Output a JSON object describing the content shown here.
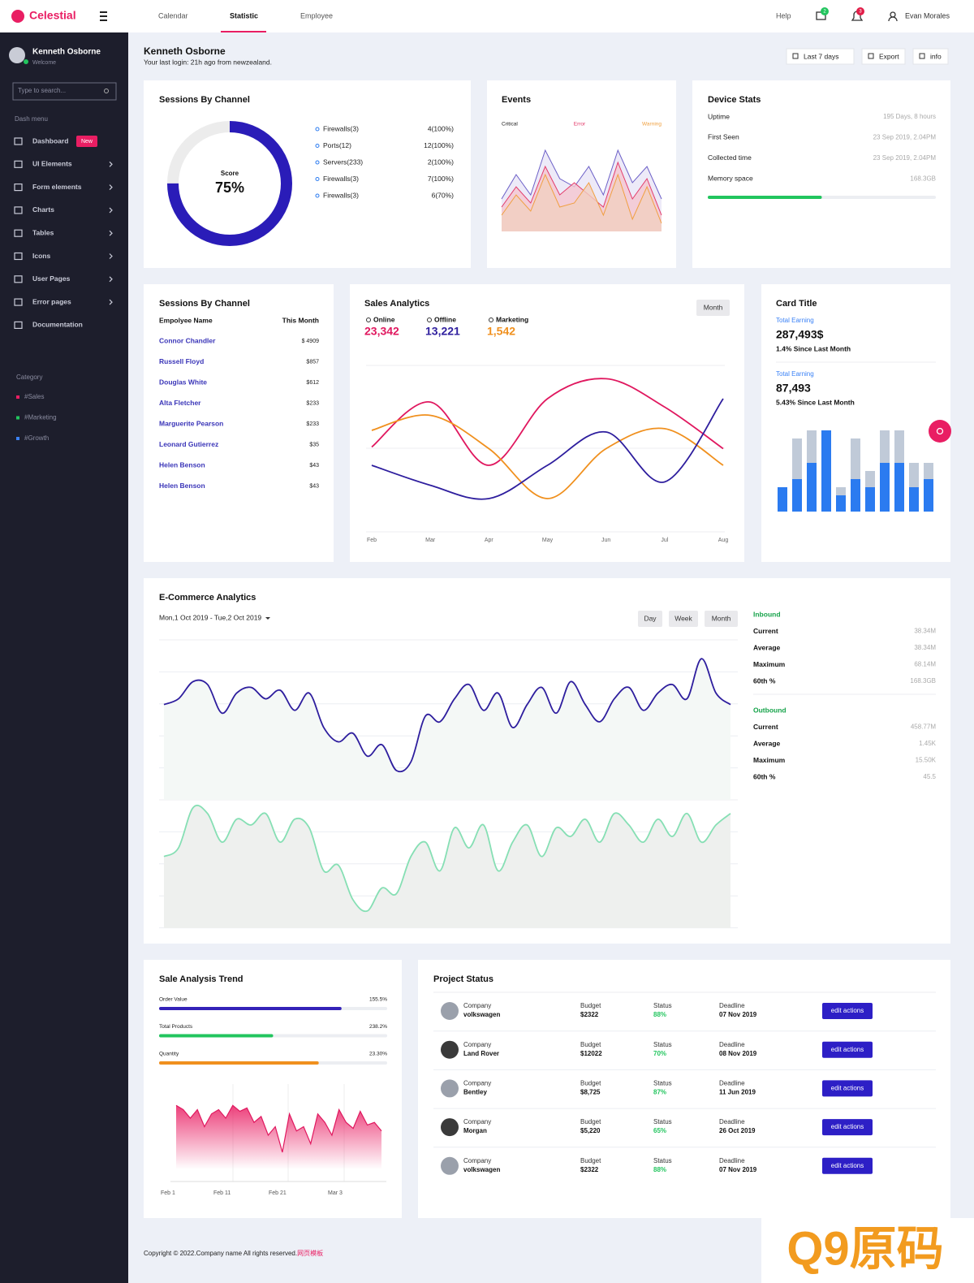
{
  "header": {
    "brand": "Celestial",
    "nav": [
      "Calendar",
      "Statistic",
      "Employee"
    ],
    "help": "Help",
    "messages_badge": "2",
    "alerts_badge": "3",
    "user": "Evan Morales"
  },
  "sidebar": {
    "user": "Kenneth Osborne",
    "status": "Welcome",
    "search_placeholder": "Type to search...",
    "menu_title": "Dash menu",
    "menu": [
      {
        "label": "Dashboard",
        "badge": "New"
      },
      {
        "label": "UI Elements"
      },
      {
        "label": "Form elements"
      },
      {
        "label": "Charts"
      },
      {
        "label": "Tables"
      },
      {
        "label": "Icons"
      },
      {
        "label": "User Pages"
      },
      {
        "label": "Error pages"
      },
      {
        "label": "Documentation"
      }
    ],
    "category_title": "Category",
    "categories": [
      {
        "label": "#Sales",
        "color": "#e91e63"
      },
      {
        "label": "#Marketing",
        "color": "#22c55e"
      },
      {
        "label": "#Growth",
        "color": "#3b82f6"
      }
    ]
  },
  "page": {
    "title": "Kenneth Osborne",
    "subtitle": "Your last login: 21h ago from newzealand.",
    "buttons": [
      "Last 7 days",
      "Export",
      "info"
    ]
  },
  "sessions": {
    "title": "Sessions By Channel",
    "score_label": "Score",
    "score": {
      "value": 75,
      "label": "75%"
    },
    "color": "#2a1cb8",
    "items": [
      {
        "name": "Firewalls(3)",
        "value": "4(100%)"
      },
      {
        "name": "Ports(12)",
        "value": "12(100%)"
      },
      {
        "name": "Servers(233)",
        "value": "2(100%)"
      },
      {
        "name": "Firewalls(3)",
        "value": "7(100%)"
      },
      {
        "name": "Firewalls(3)",
        "value": "6(70%)"
      }
    ]
  },
  "events": {
    "title": "Events",
    "ylim": [
      0,
      100
    ],
    "series": [
      {
        "name": "Critical",
        "color": "#6b5fc7",
        "fill": "#e8e5f6",
        "values": [
          40,
          70,
          45,
          100,
          65,
          55,
          80,
          45,
          100,
          60,
          80,
          40
        ]
      },
      {
        "name": "Error",
        "color": "#e33a6a",
        "fill": "#f4c6cf",
        "values": [
          30,
          55,
          35,
          80,
          45,
          60,
          45,
          30,
          85,
          40,
          65,
          20
        ]
      },
      {
        "name": "Warning",
        "color": "#f0a040",
        "fill": "#f1d0c0",
        "values": [
          20,
          45,
          25,
          70,
          30,
          35,
          60,
          20,
          70,
          15,
          55,
          10
        ]
      }
    ]
  },
  "device": {
    "title": "Device Stats",
    "rows": [
      {
        "label": "Uptime",
        "value": "195 Days, 8 hours"
      },
      {
        "label": "First Seen",
        "value": "23 Sep 2019, 2.04PM"
      },
      {
        "label": "Collected time",
        "value": "23 Sep 2019, 2.04PM"
      },
      {
        "label": "Memory space",
        "value": "168.3GB"
      }
    ],
    "memory_progress": 50,
    "color": "#22c55e"
  },
  "employees": {
    "title": "Sessions By Channel",
    "headers": [
      "Empolyee Name",
      "This Month"
    ],
    "rows": [
      [
        "Connor Chandler",
        "$ 4909"
      ],
      [
        "Russell Floyd",
        "$857"
      ],
      [
        "Douglas White",
        "$612"
      ],
      [
        "Alta Fletcher",
        "$233"
      ],
      [
        "Marguerite Pearson",
        "$233"
      ],
      [
        "Leonard Gutierrez",
        "$35"
      ],
      [
        "Helen Benson",
        "$43"
      ],
      [
        "Helen Benson",
        "$43"
      ]
    ]
  },
  "sales": {
    "title": "Sales Analytics",
    "button": "Month",
    "stats": [
      {
        "label": "Online",
        "value": "23,342",
        "color": "#e0185f"
      },
      {
        "label": "Offline",
        "value": "13,221",
        "color": "#2e1e9e"
      },
      {
        "label": "Marketing",
        "value": "1,542",
        "color": "#f0901e"
      }
    ],
    "categories": [
      "Feb",
      "Mar",
      "Apr",
      "May",
      "Jun",
      "Jul",
      "Aug"
    ],
    "ylim": [
      0,
      100
    ],
    "series": [
      {
        "color": "#e0185f",
        "values": [
          51,
          78,
          40,
          80,
          92,
          75,
          50
        ]
      },
      {
        "color": "#f0901e",
        "values": [
          61,
          70,
          50,
          20,
          50,
          62,
          40
        ]
      },
      {
        "color": "#2e1e9e",
        "values": [
          40,
          28,
          20,
          40,
          60,
          30,
          80
        ]
      }
    ]
  },
  "card": {
    "title": "Card Title",
    "blocks": [
      {
        "label": "Total Earning",
        "value": "287,493$",
        "note": "1.4% Since Last Month"
      },
      {
        "label": "Total Earning",
        "value": "87,493",
        "note": "5.43% Since Last Month"
      }
    ],
    "ylim": [
      0,
      50
    ],
    "totals": [
      15,
      45,
      50,
      50,
      15,
      45,
      25,
      50,
      50,
      30,
      30
    ],
    "parts": [
      15,
      20,
      30,
      50,
      10,
      20,
      15,
      30,
      30,
      15,
      20
    ],
    "total_color": "#c0cad8",
    "part_color": "#2b7bf0"
  },
  "ecommerce": {
    "title": "E-Commerce Analytics",
    "range": "Mon,1 Oct 2019 - Tue,2 Oct 2019",
    "buttons": [
      "Day",
      "Week",
      "Month"
    ],
    "ylim": [
      0,
      100
    ],
    "series": [
      {
        "color": "#2e1e9e",
        "fill": "#f4f8f6",
        "values": [
          78,
          80,
          86,
          85,
          75,
          82,
          84,
          80,
          83,
          76,
          82,
          70,
          65,
          68,
          60,
          64,
          55,
          58,
          74,
          72,
          80,
          85,
          76,
          82,
          70,
          78,
          84,
          75,
          86,
          78,
          72,
          80,
          84,
          76,
          82,
          85,
          80,
          94,
          82,
          78
        ]
      },
      {
        "color": "#86dfb4",
        "fill": "#eef0ee",
        "values": [
          25,
          28,
          42,
          40,
          30,
          38,
          36,
          40,
          30,
          38,
          35,
          20,
          22,
          10,
          6,
          14,
          12,
          25,
          30,
          20,
          35,
          28,
          36,
          20,
          30,
          36,
          25,
          35,
          32,
          38,
          30,
          40,
          36,
          30,
          38,
          32,
          40,
          30,
          36,
          40
        ]
      }
    ],
    "groups": [
      {
        "title": "Inbound",
        "rows": [
          [
            "Current",
            "38.34M"
          ],
          [
            "Average",
            "38.34M"
          ],
          [
            "Maximum",
            "68.14M"
          ],
          [
            "60th %",
            "168.3GB"
          ]
        ]
      },
      {
        "title": "Outbound",
        "rows": [
          [
            "Current",
            "458.77M"
          ],
          [
            "Average",
            "1.45K"
          ],
          [
            "Maximum",
            "15.50K"
          ],
          [
            "60th %",
            "45.5"
          ]
        ]
      }
    ]
  },
  "trend": {
    "title": "Sale Analysis Trend",
    "progress": [
      {
        "label": "Order Value",
        "value": "155.5%",
        "fill": 80,
        "color": "#3422b8"
      },
      {
        "label": "Total Products",
        "value": "238.2%",
        "fill": 50,
        "color": "#22c55e"
      },
      {
        "label": "Quantity",
        "value": "23.30%",
        "fill": 70,
        "color": "#f0901e"
      }
    ],
    "ylim": [
      0,
      100
    ],
    "values": [
      75,
      70,
      60,
      70,
      50,
      65,
      70,
      60,
      75,
      68,
      72,
      55,
      62,
      40,
      50,
      20,
      65,
      45,
      50,
      30,
      65,
      55,
      40,
      70,
      55,
      48,
      68,
      52,
      55,
      45
    ],
    "xlabels": [
      "Feb 1",
      "Feb 11",
      "Feb 21",
      "Mar 3"
    ],
    "color": "#e0185f"
  },
  "projects": {
    "title": "Project Status",
    "rows": [
      {
        "company_label": "Company",
        "company": "volkswagen",
        "budget_label": "Budget",
        "budget": "$2322",
        "status_label": "Status",
        "status": "88%",
        "deadline_label": "Deadline",
        "deadline": "07 Nov 2019",
        "action": "edit actions"
      },
      {
        "company_label": "Company",
        "company": "Land Rover",
        "budget_label": "Budget",
        "budget": "$12022",
        "status_label": "Status",
        "status": "70%",
        "deadline_label": "Deadline",
        "deadline": "08 Nov 2019",
        "action": "edit actions"
      },
      {
        "company_label": "Company",
        "company": "Bentley",
        "budget_label": "Budget",
        "budget": "$8,725",
        "status_label": "Status",
        "status": "87%",
        "deadline_label": "Deadline",
        "deadline": "11 Jun 2019",
        "action": "edit actions"
      },
      {
        "company_label": "Company",
        "company": "Morgan",
        "budget_label": "Budget",
        "budget": "$5,220",
        "status_label": "Status",
        "status": "65%",
        "deadline_label": "Deadline",
        "deadline": "26 Oct 2019",
        "action": "edit actions"
      },
      {
        "company_label": "Company",
        "company": "volkswagen",
        "budget_label": "Budget",
        "budget": "$2322",
        "status_label": "Status",
        "status": "88%",
        "deadline_label": "Deadline",
        "deadline": "07 Nov 2019",
        "action": "edit actions"
      }
    ]
  },
  "footer": {
    "text": "Copyright © 2022.Company name All rights reserved.",
    "link": "网页模板",
    "watermark": "Q9原码"
  }
}
